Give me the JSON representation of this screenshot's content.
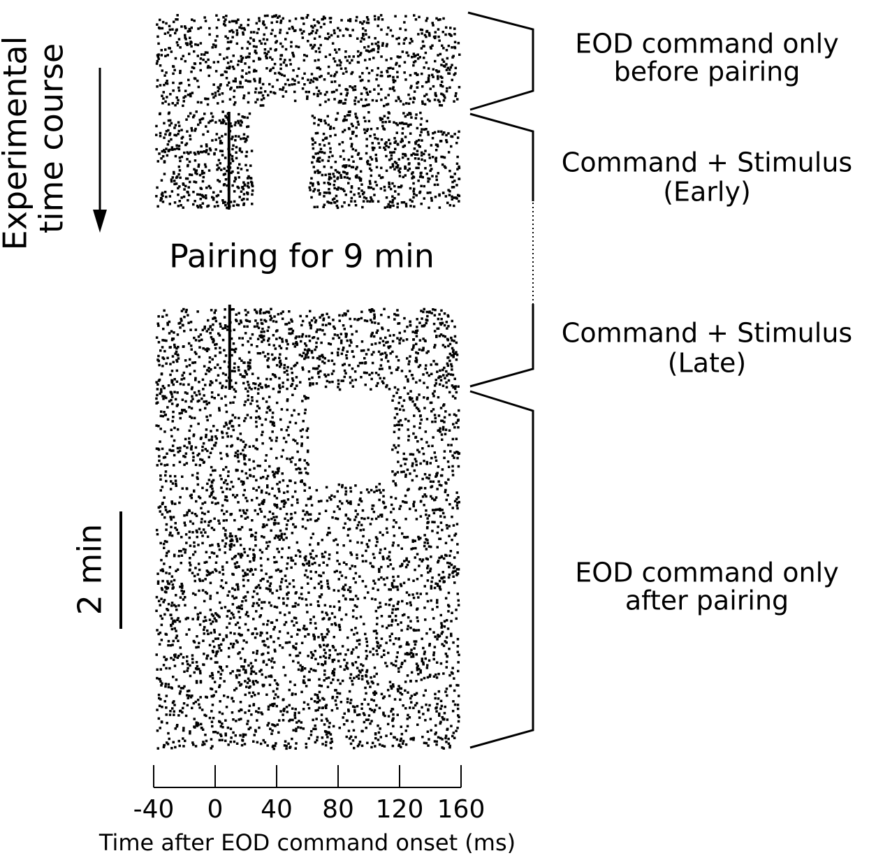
{
  "chart_data": {
    "type": "raster",
    "x_label": "Time after EOD command onset (ms)",
    "xlim": [
      -40,
      160
    ],
    "xticks": [
      -40,
      0,
      40,
      80,
      120,
      160
    ],
    "y_label": [
      "Experimental",
      "time course"
    ],
    "scale_bar": "2 min",
    "pairing_label": "Pairing for 9 min",
    "stimulus_time": 9,
    "segments": [
      {
        "label": [
          "EOD command only",
          "before pairing"
        ]
      },
      {
        "label": [
          "Command + Stimulus",
          "(Early)"
        ]
      },
      {
        "label": [
          "Command + Stimulus",
          "(Late)"
        ]
      },
      {
        "label": [
          "EOD command only",
          "after pairing"
        ]
      }
    ]
  }
}
